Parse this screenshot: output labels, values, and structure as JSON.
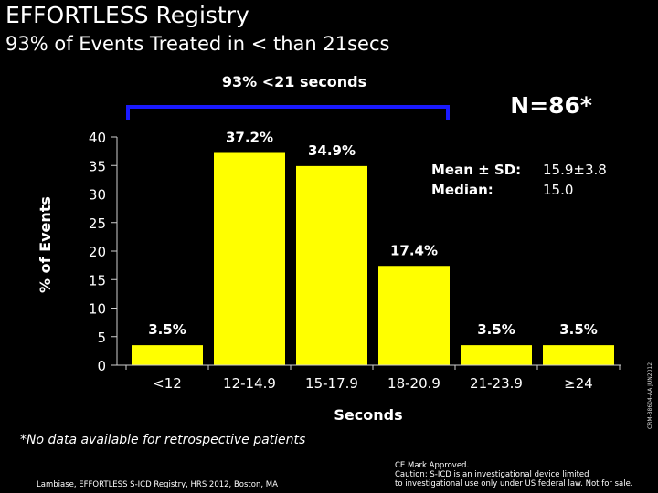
{
  "header": {
    "title": "EFFORTLESS Registry",
    "subtitle": "93% of Events Treated in < than 21secs"
  },
  "chart_data": {
    "type": "bar",
    "categories": [
      "<12",
      "12-14.9",
      "15-17.9",
      "18-20.9",
      "21-23.9",
      "≥24"
    ],
    "values": [
      3.5,
      37.2,
      34.9,
      17.4,
      3.5,
      3.5
    ],
    "data_labels": [
      "3.5%",
      "37.2%",
      "34.9%",
      "17.4%",
      "3.5%",
      "3.5%"
    ],
    "xlabel": "Seconds",
    "ylabel": "% of Events",
    "ylim": [
      0,
      40
    ],
    "yticks": [
      "0",
      "5",
      "10",
      "15",
      "20",
      "25",
      "30",
      "35",
      "40"
    ],
    "grid": false,
    "bar_color": "#ffff00",
    "annotations": {
      "bracket_label": "93% <21 seconds",
      "bracket_color": "#1a1aff",
      "n_label": "N=86*",
      "stats": [
        {
          "label": "Mean ± SD:",
          "value": "15.9±3.8"
        },
        {
          "label": "Median:",
          "value": "15.0"
        }
      ]
    }
  },
  "footer": {
    "footnote": "*No data available for retrospective patients",
    "citation": "Lambiase, EFFORTLESS S-ICD Registry, HRS 2012, Boston, MA",
    "disclaimer": [
      "CE Mark Approved.",
      "Caution: S-ICD is an investigational device limited",
      "to investigational use only under US federal law.  Not for sale."
    ],
    "doc_id": "CRM-88604-AA JUN2012"
  }
}
